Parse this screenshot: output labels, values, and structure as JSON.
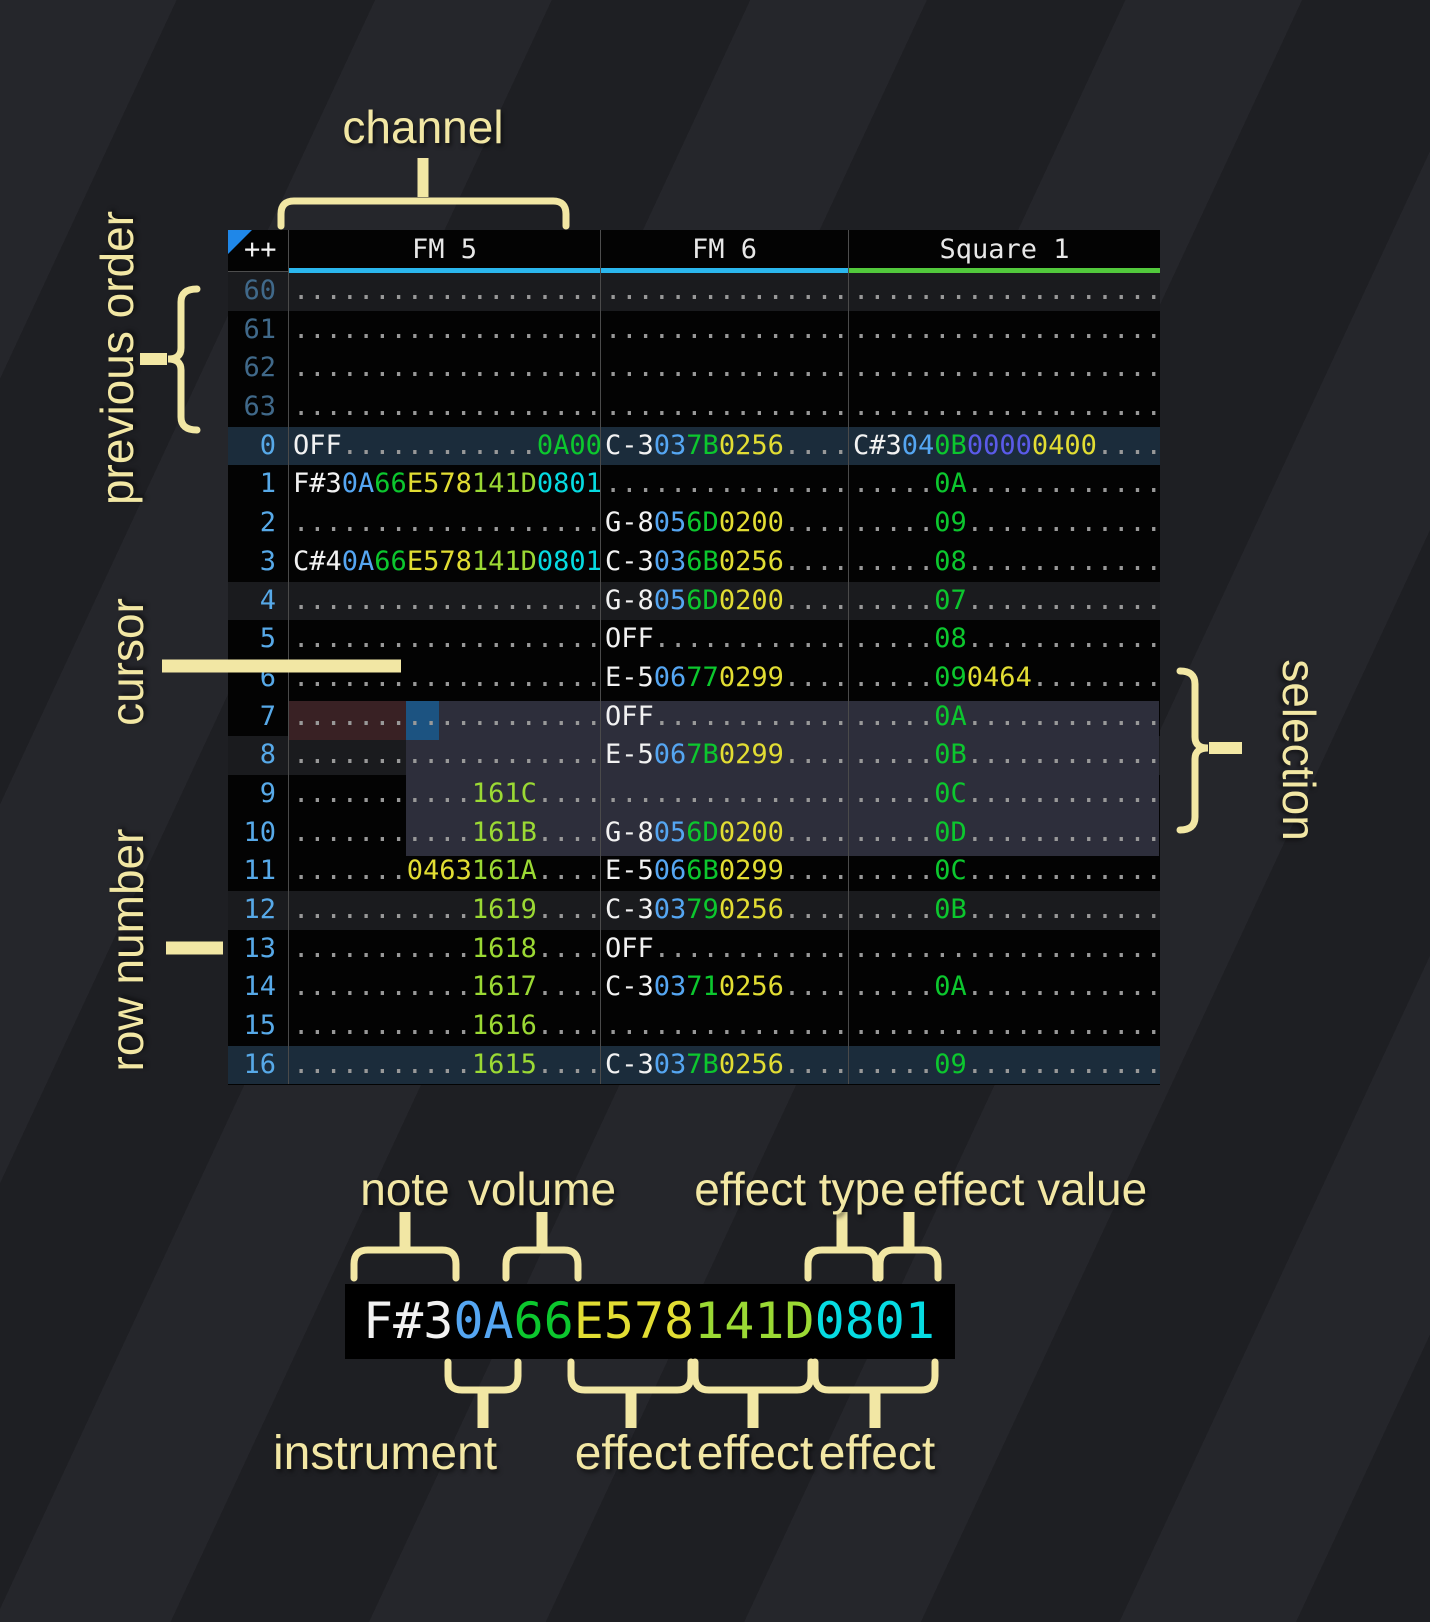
{
  "palette": {
    "accent": "#f2e7a4",
    "note": "#f2f2f2",
    "ins": "#55a6f2",
    "vol": "#0cc72e",
    "fxy": "#e2dd33",
    "fxl": "#9bd934",
    "fxc": "#06dbe2",
    "fxi": "#5a5ae8",
    "dot": "#999999",
    "rowcur": "#57a9e8",
    "rowprev": "#40698a",
    "cursor": "#1c5381",
    "maroon": "#392124",
    "sel": "#2d2e3b",
    "tri": "#1f87e8",
    "ulcyan": "#2bb7ee",
    "ulgreen": "#52c93c"
  },
  "annotations": {
    "channel": "channel",
    "previous_order": "previous order",
    "cursor": "cursor",
    "row_number": "row number",
    "selection": "selection"
  },
  "pattern": {
    "corner": "++",
    "channels": [
      {
        "name": "FM 5",
        "underline": "#2bb7ee"
      },
      {
        "name": "FM 6",
        "underline": "#2bb7ee"
      },
      {
        "name": "Square 1",
        "underline": "#52c93c"
      }
    ],
    "rows": [
      {
        "num": "60",
        "dim": true,
        "hl": "minor",
        "cells": [
          [
            [
              "d",
              19
            ]
          ],
          [
            [
              "d",
              15
            ]
          ],
          [
            [
              "d",
              19
            ]
          ]
        ]
      },
      {
        "num": "61",
        "dim": true,
        "hl": "",
        "cells": [
          [
            [
              "d",
              19
            ]
          ],
          [
            [
              "d",
              15
            ]
          ],
          [
            [
              "d",
              19
            ]
          ]
        ]
      },
      {
        "num": "62",
        "dim": true,
        "hl": "",
        "cells": [
          [
            [
              "d",
              19
            ]
          ],
          [
            [
              "d",
              15
            ]
          ],
          [
            [
              "d",
              19
            ]
          ]
        ]
      },
      {
        "num": "63",
        "dim": true,
        "hl": "",
        "cells": [
          [
            [
              "d",
              19
            ]
          ],
          [
            [
              "d",
              15
            ]
          ],
          [
            [
              "d",
              19
            ]
          ]
        ]
      },
      {
        "num": "0",
        "hl": "major",
        "cells": [
          [
            [
              "w",
              "OFF"
            ],
            [
              "d",
              12
            ],
            [
              "g",
              "0A00"
            ]
          ],
          [
            [
              "w",
              "C-3"
            ],
            [
              "b",
              "03"
            ],
            [
              "g",
              "7B"
            ],
            [
              "y",
              "0256"
            ],
            [
              "d",
              4
            ]
          ],
          [
            [
              "w",
              "C#3"
            ],
            [
              "b",
              "04"
            ],
            [
              "g",
              "0B"
            ],
            [
              "i",
              "0000"
            ],
            [
              "y",
              "0400"
            ],
            [
              "d",
              4
            ]
          ]
        ]
      },
      {
        "num": "1",
        "hl": "",
        "cells": [
          [
            [
              "w",
              "F#3"
            ],
            [
              "b",
              "0A"
            ],
            [
              "g",
              "66"
            ],
            [
              "y",
              "E578"
            ],
            [
              "l",
              "141D"
            ],
            [
              "c",
              "0801"
            ]
          ],
          [
            [
              "d",
              15
            ]
          ],
          [
            [
              "d",
              5
            ],
            [
              "g",
              "0A"
            ],
            [
              "d",
              12
            ]
          ]
        ]
      },
      {
        "num": "2",
        "hl": "",
        "cells": [
          [
            [
              "d",
              19
            ]
          ],
          [
            [
              "w",
              "G-8"
            ],
            [
              "b",
              "05"
            ],
            [
              "g",
              "6D"
            ],
            [
              "y",
              "0200"
            ],
            [
              "d",
              4
            ]
          ],
          [
            [
              "d",
              5
            ],
            [
              "g",
              "09"
            ],
            [
              "d",
              12
            ]
          ]
        ]
      },
      {
        "num": "3",
        "hl": "",
        "cells": [
          [
            [
              "w",
              "C#4"
            ],
            [
              "b",
              "0A"
            ],
            [
              "g",
              "66"
            ],
            [
              "y",
              "E578"
            ],
            [
              "l",
              "141D"
            ],
            [
              "c",
              "0801"
            ]
          ],
          [
            [
              "w",
              "C-3"
            ],
            [
              "b",
              "03"
            ],
            [
              "g",
              "6B"
            ],
            [
              "y",
              "0256"
            ],
            [
              "d",
              4
            ]
          ],
          [
            [
              "d",
              5
            ],
            [
              "g",
              "08"
            ],
            [
              "d",
              12
            ]
          ]
        ]
      },
      {
        "num": "4",
        "hl": "minor",
        "cells": [
          [
            [
              "d",
              19
            ]
          ],
          [
            [
              "w",
              "G-8"
            ],
            [
              "b",
              "05"
            ],
            [
              "g",
              "6D"
            ],
            [
              "y",
              "0200"
            ],
            [
              "d",
              4
            ]
          ],
          [
            [
              "d",
              5
            ],
            [
              "g",
              "07"
            ],
            [
              "d",
              12
            ]
          ]
        ]
      },
      {
        "num": "5",
        "hl": "",
        "cells": [
          [
            [
              "d",
              19
            ]
          ],
          [
            [
              "w",
              "OFF"
            ],
            [
              "d",
              12
            ]
          ],
          [
            [
              "d",
              5
            ],
            [
              "g",
              "08"
            ],
            [
              "d",
              12
            ]
          ]
        ]
      },
      {
        "num": "6",
        "hl": "",
        "cells": [
          [
            [
              "d",
              19
            ]
          ],
          [
            [
              "w",
              "E-5"
            ],
            [
              "b",
              "06"
            ],
            [
              "g",
              "77"
            ],
            [
              "y",
              "0299"
            ],
            [
              "d",
              4
            ]
          ],
          [
            [
              "d",
              5
            ],
            [
              "g",
              "09"
            ],
            [
              "y",
              "0464"
            ],
            [
              "d",
              8
            ]
          ]
        ]
      },
      {
        "num": "7",
        "hl": "",
        "cells": [
          [
            [
              "d",
              19
            ]
          ],
          [
            [
              "w",
              "OFF"
            ],
            [
              "d",
              12
            ]
          ],
          [
            [
              "d",
              5
            ],
            [
              "g",
              "0A"
            ],
            [
              "d",
              12
            ]
          ]
        ]
      },
      {
        "num": "8",
        "hl": "minor",
        "cells": [
          [
            [
              "d",
              19
            ]
          ],
          [
            [
              "w",
              "E-5"
            ],
            [
              "b",
              "06"
            ],
            [
              "g",
              "7B"
            ],
            [
              "y",
              "0299"
            ],
            [
              "d",
              4
            ]
          ],
          [
            [
              "d",
              5
            ],
            [
              "g",
              "0B"
            ],
            [
              "d",
              12
            ]
          ]
        ]
      },
      {
        "num": "9",
        "hl": "",
        "cells": [
          [
            [
              "d",
              11
            ],
            [
              "l",
              "161C"
            ],
            [
              "d",
              4
            ]
          ],
          [
            [
              "d",
              15
            ]
          ],
          [
            [
              "d",
              5
            ],
            [
              "g",
              "0C"
            ],
            [
              "d",
              12
            ]
          ]
        ]
      },
      {
        "num": "10",
        "hl": "",
        "cells": [
          [
            [
              "d",
              11
            ],
            [
              "l",
              "161B"
            ],
            [
              "d",
              4
            ]
          ],
          [
            [
              "w",
              "G-8"
            ],
            [
              "b",
              "05"
            ],
            [
              "g",
              "6D"
            ],
            [
              "y",
              "0200"
            ],
            [
              "d",
              4
            ]
          ],
          [
            [
              "d",
              5
            ],
            [
              "g",
              "0D"
            ],
            [
              "d",
              12
            ]
          ]
        ]
      },
      {
        "num": "11",
        "hl": "",
        "cells": [
          [
            [
              "d",
              7
            ],
            [
              "y",
              "0463"
            ],
            [
              "l",
              "161A"
            ],
            [
              "d",
              4
            ]
          ],
          [
            [
              "w",
              "E-5"
            ],
            [
              "b",
              "06"
            ],
            [
              "g",
              "6B"
            ],
            [
              "y",
              "0299"
            ],
            [
              "d",
              4
            ]
          ],
          [
            [
              "d",
              5
            ],
            [
              "g",
              "0C"
            ],
            [
              "d",
              12
            ]
          ]
        ]
      },
      {
        "num": "12",
        "hl": "minor",
        "cells": [
          [
            [
              "d",
              11
            ],
            [
              "l",
              "1619"
            ],
            [
              "d",
              4
            ]
          ],
          [
            [
              "w",
              "C-3"
            ],
            [
              "b",
              "03"
            ],
            [
              "g",
              "79"
            ],
            [
              "y",
              "0256"
            ],
            [
              "d",
              4
            ]
          ],
          [
            [
              "d",
              5
            ],
            [
              "g",
              "0B"
            ],
            [
              "d",
              12
            ]
          ]
        ]
      },
      {
        "num": "13",
        "hl": "",
        "cells": [
          [
            [
              "d",
              11
            ],
            [
              "l",
              "1618"
            ],
            [
              "d",
              4
            ]
          ],
          [
            [
              "w",
              "OFF"
            ],
            [
              "d",
              12
            ]
          ],
          [
            [
              "d",
              19
            ]
          ]
        ]
      },
      {
        "num": "14",
        "hl": "",
        "cells": [
          [
            [
              "d",
              11
            ],
            [
              "l",
              "1617"
            ],
            [
              "d",
              4
            ]
          ],
          [
            [
              "w",
              "C-3"
            ],
            [
              "b",
              "03"
            ],
            [
              "g",
              "71"
            ],
            [
              "y",
              "0256"
            ],
            [
              "d",
              4
            ]
          ],
          [
            [
              "d",
              5
            ],
            [
              "g",
              "0A"
            ],
            [
              "d",
              12
            ]
          ]
        ]
      },
      {
        "num": "15",
        "hl": "",
        "cells": [
          [
            [
              "d",
              11
            ],
            [
              "l",
              "1616"
            ],
            [
              "d",
              4
            ]
          ],
          [
            [
              "d",
              15
            ]
          ],
          [
            [
              "d",
              19
            ]
          ]
        ]
      },
      {
        "num": "16",
        "hl": "major",
        "cells": [
          [
            [
              "d",
              11
            ],
            [
              "l",
              "1615"
            ],
            [
              "d",
              4
            ]
          ],
          [
            [
              "w",
              "C-3"
            ],
            [
              "b",
              "03"
            ],
            [
              "g",
              "7B"
            ],
            [
              "y",
              "0256"
            ],
            [
              "d",
              4
            ]
          ],
          [
            [
              "d",
              5
            ],
            [
              "g",
              "09"
            ],
            [
              "d",
              12
            ]
          ]
        ]
      }
    ]
  },
  "breakdown": {
    "tokens": [
      [
        "w",
        "F#3"
      ],
      [
        "b",
        "0A"
      ],
      [
        "g",
        "66"
      ],
      [
        "y",
        "E578"
      ],
      [
        "l",
        "141D"
      ],
      [
        "c",
        "0801"
      ]
    ],
    "labels_top": [
      "note",
      "volume",
      "effect type",
      "effect value"
    ],
    "labels_bottom": [
      "instrument",
      "effect",
      "effect",
      "effect"
    ]
  }
}
